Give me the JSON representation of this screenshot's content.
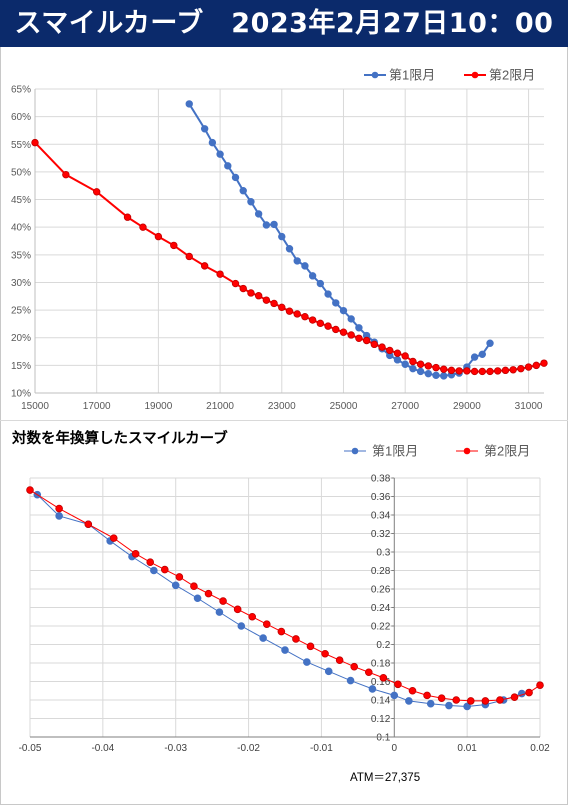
{
  "header": {
    "title": "スマイルカーブ　2023年2月27日10：00"
  },
  "chart_data": [
    {
      "type": "line",
      "title": "",
      "xlim": [
        15000,
        31500
      ],
      "ylim": [
        0.1,
        0.65
      ],
      "x_ticks": [
        "15000",
        "17000",
        "19000",
        "21000",
        "23000",
        "25000",
        "27000",
        "29000",
        "31000"
      ],
      "x_tick_values": [
        15000,
        17000,
        19000,
        21000,
        23000,
        25000,
        27000,
        29000,
        31000
      ],
      "y_ticks": [
        "10%",
        "15%",
        "20%",
        "25%",
        "30%",
        "35%",
        "40%",
        "45%",
        "50%",
        "55%",
        "60%",
        "65%"
      ],
      "y_tick_values": [
        0.1,
        0.15,
        0.2,
        0.25,
        0.3,
        0.35,
        0.4,
        0.45,
        0.5,
        0.55,
        0.6,
        0.65
      ],
      "legend_position": "top-right",
      "series": [
        {
          "name": "第1限月",
          "color": "#4472c4",
          "x": [
            20000,
            20500,
            20750,
            21000,
            21250,
            21500,
            21750,
            22000,
            22250,
            22500,
            22750,
            23000,
            23250,
            23500,
            23750,
            24000,
            24250,
            24500,
            24750,
            25000,
            25250,
            25500,
            25750,
            26000,
            26250,
            26500,
            26750,
            27000,
            27250,
            27500,
            27750,
            28000,
            28250,
            28500,
            28750,
            29000,
            29250,
            29500,
            29750
          ],
          "y": [
            0.623,
            0.578,
            0.553,
            0.532,
            0.511,
            0.49,
            0.466,
            0.446,
            0.424,
            0.404,
            0.405,
            0.383,
            0.361,
            0.339,
            0.33,
            0.312,
            0.298,
            0.279,
            0.263,
            0.249,
            0.234,
            0.218,
            0.204,
            0.192,
            0.18,
            0.168,
            0.16,
            0.152,
            0.144,
            0.139,
            0.135,
            0.132,
            0.131,
            0.133,
            0.136,
            0.147,
            0.165,
            0.17,
            0.19
          ]
        },
        {
          "name": "第2限月",
          "color": "#ff0000",
          "x": [
            15000,
            16000,
            17000,
            18000,
            18500,
            19000,
            19500,
            20000,
            20500,
            21000,
            21500,
            21750,
            22000,
            22250,
            22500,
            22750,
            23000,
            23250,
            23500,
            23750,
            24000,
            24250,
            24500,
            24750,
            25000,
            25250,
            25500,
            25750,
            26000,
            26250,
            26500,
            26750,
            27000,
            27250,
            27500,
            27750,
            28000,
            28250,
            28500,
            28750,
            29000,
            29250,
            29500,
            29750,
            30000,
            30250,
            30500,
            30750,
            31000,
            31250,
            31500
          ],
          "y": [
            0.553,
            0.495,
            0.464,
            0.418,
            0.4,
            0.383,
            0.367,
            0.347,
            0.33,
            0.315,
            0.298,
            0.289,
            0.281,
            0.276,
            0.268,
            0.262,
            0.255,
            0.248,
            0.243,
            0.238,
            0.232,
            0.226,
            0.221,
            0.215,
            0.21,
            0.205,
            0.199,
            0.195,
            0.188,
            0.183,
            0.177,
            0.172,
            0.167,
            0.157,
            0.152,
            0.149,
            0.146,
            0.143,
            0.141,
            0.14,
            0.14,
            0.139,
            0.139,
            0.139,
            0.14,
            0.141,
            0.142,
            0.144,
            0.147,
            0.15,
            0.154
          ]
        }
      ]
    },
    {
      "type": "line",
      "title": "対数を年換算したスマイルカーブ",
      "xlim": [
        -0.05,
        0.02
      ],
      "ylim": [
        0.1,
        0.38
      ],
      "x_ticks": [
        "-0.05",
        "-0.04",
        "-0.03",
        "-0.02",
        "-0.01",
        "0",
        "0.01",
        "0.02"
      ],
      "x_tick_values": [
        -0.05,
        -0.04,
        -0.03,
        -0.02,
        -0.01,
        0,
        0.01,
        0.02
      ],
      "y_ticks": [
        "0.1",
        "0.12",
        "0.14",
        "0.16",
        "0.18",
        "0.2",
        "0.22",
        "0.24",
        "0.26",
        "0.28",
        "0.3",
        "0.32",
        "0.34",
        "0.36",
        "0.38"
      ],
      "y_tick_values": [
        0.1,
        0.12,
        0.14,
        0.16,
        0.18,
        0.2,
        0.22,
        0.24,
        0.26,
        0.28,
        0.3,
        0.32,
        0.34,
        0.36,
        0.38
      ],
      "legend_position": "top-right",
      "annotation": "ATM＝27,375",
      "series": [
        {
          "name": "第1限月",
          "color": "#4472c4",
          "x": [
            -0.049,
            -0.046,
            -0.042,
            -0.039,
            -0.036,
            -0.033,
            -0.03,
            -0.027,
            -0.024,
            -0.021,
            -0.018,
            -0.015,
            -0.012,
            -0.009,
            -0.006,
            -0.003,
            0.0,
            0.002,
            0.005,
            0.0075,
            0.01,
            0.0125,
            0.015,
            0.0175
          ],
          "y": [
            0.362,
            0.339,
            0.33,
            0.312,
            0.295,
            0.28,
            0.264,
            0.25,
            0.235,
            0.22,
            0.207,
            0.194,
            0.181,
            0.171,
            0.161,
            0.152,
            0.145,
            0.139,
            0.136,
            0.134,
            0.133,
            0.135,
            0.14,
            0.147
          ]
        },
        {
          "name": "第2限月",
          "color": "#ff0000",
          "x": [
            -0.05,
            -0.046,
            -0.042,
            -0.0385,
            -0.0355,
            -0.0335,
            -0.0315,
            -0.0295,
            -0.0275,
            -0.0255,
            -0.0235,
            -0.0215,
            -0.0195,
            -0.0175,
            -0.0155,
            -0.0135,
            -0.0115,
            -0.0095,
            -0.0075,
            -0.0055,
            -0.0035,
            -0.0015,
            0.0005,
            0.0025,
            0.0045,
            0.0065,
            0.0085,
            0.0105,
            0.0125,
            0.0145,
            0.0165,
            0.0185,
            0.02
          ],
          "y": [
            0.367,
            0.347,
            0.33,
            0.315,
            0.298,
            0.289,
            0.281,
            0.273,
            0.263,
            0.255,
            0.247,
            0.238,
            0.23,
            0.222,
            0.214,
            0.206,
            0.198,
            0.19,
            0.183,
            0.176,
            0.17,
            0.164,
            0.157,
            0.15,
            0.145,
            0.142,
            0.14,
            0.139,
            0.139,
            0.14,
            0.143,
            0.148,
            0.156
          ]
        }
      ]
    }
  ]
}
